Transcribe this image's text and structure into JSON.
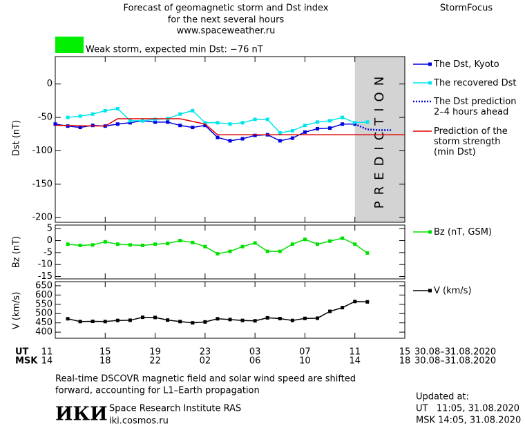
{
  "header": {
    "title_lines": [
      "Forecast of geomagnetic storm and Dst index",
      "for the next several hours",
      "www.spaceweather.ru"
    ],
    "brand": "StormFocus"
  },
  "status": {
    "color": "#00ee00",
    "text": "Weak storm, expected min Dst: −76 nT"
  },
  "chart_data": [
    {
      "type": "line",
      "ylabel": "Dst (nT)",
      "xlim": [
        0,
        28
      ],
      "ylim": [
        -207,
        41
      ],
      "yticks": [
        0,
        -50,
        -100,
        -150,
        -200
      ],
      "xticks": [
        0,
        4,
        8,
        12,
        16,
        20,
        24,
        28
      ],
      "prediction": {
        "label": "PREDICTION",
        "xlim": [
          24,
          28
        ],
        "color": "#d3d3d3"
      },
      "series": [
        {
          "name": "The Dst, Kyoto",
          "color": "#0000e0",
          "marker": "square",
          "linestyle": "solid",
          "x": [
            0,
            1,
            2,
            3,
            4,
            5,
            6,
            7,
            8,
            9,
            10,
            11,
            12,
            13,
            14,
            15,
            16,
            17,
            18,
            19,
            20,
            21,
            22,
            23,
            24
          ],
          "values": [
            -60,
            -63,
            -65,
            -62,
            -63,
            -60,
            -58,
            -55,
            -57,
            -57,
            -62,
            -65,
            -62,
            -80,
            -85,
            -82,
            -77,
            -76,
            -85,
            -81,
            -72,
            -67,
            -66,
            -60,
            -60
          ]
        },
        {
          "name": "The recovered Dst",
          "color": "#00e5ee",
          "marker": "square",
          "linestyle": "solid",
          "x": [
            1,
            2,
            3,
            4,
            5,
            6,
            7,
            8,
            9,
            10,
            11,
            12,
            13,
            14,
            15,
            16,
            17,
            18,
            19,
            20,
            21,
            22,
            23,
            24,
            25
          ],
          "values": [
            -50,
            -48,
            -45,
            -40,
            -37,
            -55,
            -55,
            -53,
            -52,
            -45,
            -40,
            -58,
            -58,
            -60,
            -58,
            -53,
            -53,
            -73,
            -70,
            -62,
            -57,
            -55,
            -50,
            -58,
            -57
          ]
        },
        {
          "name": "The Dst prediction\n2–4 hours ahead",
          "color": "#0000e0",
          "marker": "none",
          "linestyle": "dotted",
          "x": [
            24,
            25,
            26,
            27
          ],
          "values": [
            -60,
            -68,
            -69,
            -69
          ]
        },
        {
          "name": "Prediction of the\nstorm strength\n(min Dst)",
          "color": "#e00000",
          "marker": "none",
          "linestyle": "solid",
          "x": [
            0,
            4,
            5,
            10,
            12,
            13,
            28
          ],
          "values": [
            -62,
            -63,
            -52,
            -52,
            -60,
            -76,
            -76
          ]
        }
      ]
    },
    {
      "type": "line",
      "ylabel": "Bz (nT)",
      "xlim": [
        0,
        28
      ],
      "ylim": [
        -16,
        6.5
      ],
      "yticks": [
        5,
        0,
        -5,
        -10,
        -15
      ],
      "xticks": [
        0,
        4,
        8,
        12,
        16,
        20,
        24,
        28
      ],
      "series": [
        {
          "name": "Bz (nT, GSM)",
          "color": "#00e000",
          "marker": "square",
          "linestyle": "solid",
          "x": [
            1,
            2,
            3,
            4,
            5,
            6,
            7,
            8,
            9,
            10,
            11,
            12,
            13,
            14,
            15,
            16,
            17,
            18,
            19,
            20,
            21,
            22,
            23,
            24,
            25
          ],
          "values": [
            -1.5,
            -2,
            -1.8,
            -0.5,
            -1.5,
            -1.8,
            -2,
            -1.5,
            -1.2,
            0,
            -0.8,
            -2.5,
            -5.5,
            -4.5,
            -2.5,
            -1,
            -4.5,
            -4.5,
            -1.5,
            0.5,
            -1.5,
            -0.2,
            1,
            -1.5,
            -5.2
          ]
        }
      ]
    },
    {
      "type": "line",
      "ylabel": "V (km/s)",
      "xlim": [
        0,
        28
      ],
      "ylim": [
        367,
        672
      ],
      "yticks": [
        650,
        600,
        550,
        500,
        450,
        400
      ],
      "xticks": [
        0,
        4,
        8,
        12,
        16,
        20,
        24,
        28
      ],
      "series": [
        {
          "name": "V (km/s)",
          "color": "#000000",
          "marker": "square",
          "linestyle": "solid",
          "x": [
            1,
            2,
            3,
            4,
            5,
            6,
            7,
            8,
            9,
            10,
            11,
            12,
            13,
            14,
            15,
            16,
            17,
            18,
            19,
            20,
            21,
            22,
            23,
            24,
            25
          ],
          "values": [
            472,
            457,
            458,
            457,
            463,
            464,
            480,
            479,
            465,
            457,
            450,
            455,
            472,
            468,
            463,
            461,
            477,
            473,
            463,
            474,
            475,
            512,
            532,
            565,
            563
          ]
        }
      ]
    }
  ],
  "time_axis": {
    "rows": [
      {
        "label": "UT",
        "tick_labels": [
          "11",
          "15",
          "19",
          "23",
          "03",
          "07",
          "11",
          "15"
        ],
        "range": "30.08–31.08.2020"
      },
      {
        "label": "MSK",
        "tick_labels": [
          "14",
          "18",
          "22",
          "02",
          "06",
          "10",
          "14",
          "18"
        ],
        "range": "30.08–31.08.2020"
      }
    ]
  },
  "footer": {
    "note_lines": [
      "Real-time DSCOVR magnetic field and solar wind speed are shifted",
      "forward, accounting for L1–Earth propagation"
    ],
    "logo": "ИКИ",
    "institute": "Space Research Institute RAS",
    "site": "iki.cosmos.ru",
    "updated_label": "Updated at:",
    "updated_lines": [
      "UT   11:05, 31.08.2020",
      "MSK 14:05, 31.08.2020"
    ]
  }
}
